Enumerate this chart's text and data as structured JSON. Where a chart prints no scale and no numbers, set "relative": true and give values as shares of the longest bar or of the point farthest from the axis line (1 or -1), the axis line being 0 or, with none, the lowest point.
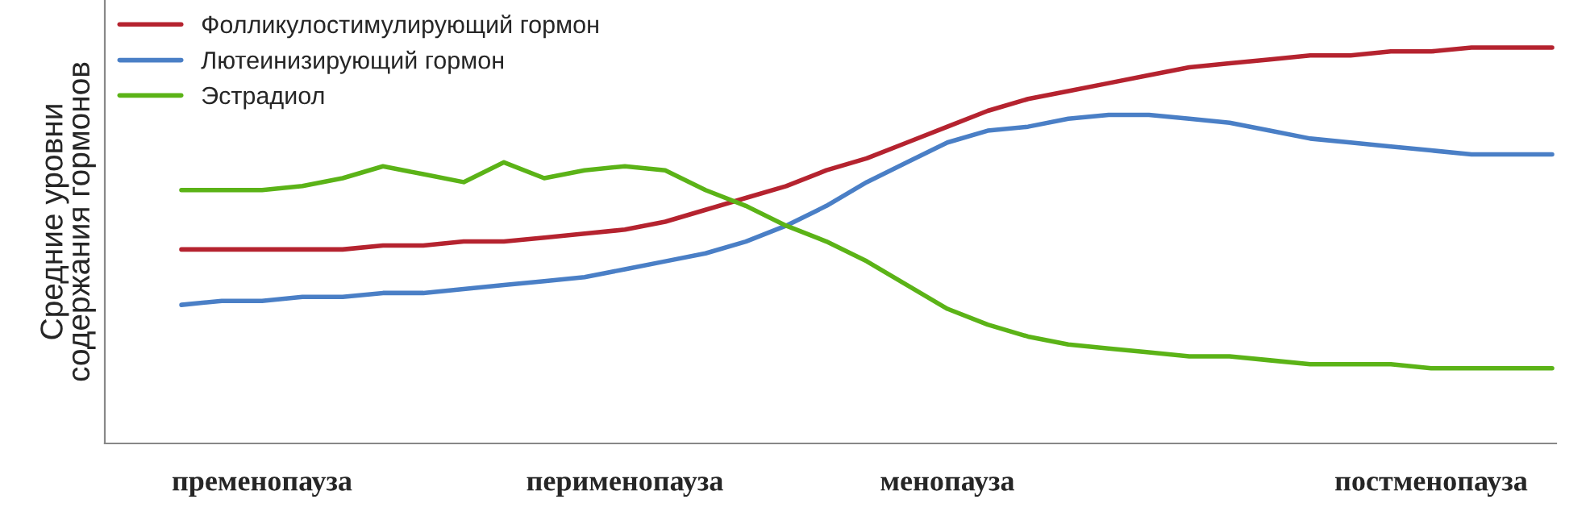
{
  "chart_data": {
    "type": "line",
    "relative": true,
    "ylabel": "Средние уровни\nсодержания гормонов",
    "categories": [
      null,
      null,
      "пременопауза",
      null,
      null,
      null,
      null,
      null,
      null,
      null,
      null,
      "перименопауза",
      null,
      null,
      null,
      null,
      null,
      null,
      null,
      "менопауза",
      null,
      null,
      null,
      null,
      null,
      null,
      null,
      null,
      null,
      null,
      null,
      "постменопауза",
      null,
      null,
      null
    ],
    "series": [
      {
        "name": "Фолликулостимулирующий гормон",
        "color": "#b5232f",
        "values": [
          0.49,
          0.49,
          0.49,
          0.49,
          0.49,
          0.5,
          0.5,
          0.51,
          0.51,
          0.52,
          0.53,
          0.54,
          0.56,
          0.59,
          0.62,
          0.65,
          0.69,
          0.72,
          0.76,
          0.8,
          0.84,
          0.87,
          0.89,
          0.91,
          0.93,
          0.95,
          0.96,
          0.97,
          0.98,
          0.98,
          0.99,
          0.99,
          1.0,
          1.0,
          1.0
        ]
      },
      {
        "name": "Лютеинизирующий гормон",
        "color": "#4a7fc6",
        "values": [
          0.35,
          0.36,
          0.36,
          0.37,
          0.37,
          0.38,
          0.38,
          0.39,
          0.4,
          0.41,
          0.42,
          0.44,
          0.46,
          0.48,
          0.51,
          0.55,
          0.6,
          0.66,
          0.71,
          0.76,
          0.79,
          0.8,
          0.82,
          0.83,
          0.83,
          0.82,
          0.81,
          0.79,
          0.77,
          0.76,
          0.75,
          0.74,
          0.73,
          0.73,
          0.73
        ]
      },
      {
        "name": "Эстрадиол",
        "color": "#5bb317",
        "values": [
          0.64,
          0.64,
          0.64,
          0.65,
          0.67,
          0.7,
          0.68,
          0.66,
          0.71,
          0.67,
          0.69,
          0.7,
          0.69,
          0.64,
          0.6,
          0.55,
          0.51,
          0.46,
          0.4,
          0.34,
          0.3,
          0.27,
          0.25,
          0.24,
          0.23,
          0.22,
          0.22,
          0.21,
          0.2,
          0.2,
          0.2,
          0.19,
          0.19,
          0.19,
          0.19
        ]
      }
    ],
    "legend": "top left",
    "grid": false,
    "marker": "none",
    "line_style": "solid"
  }
}
